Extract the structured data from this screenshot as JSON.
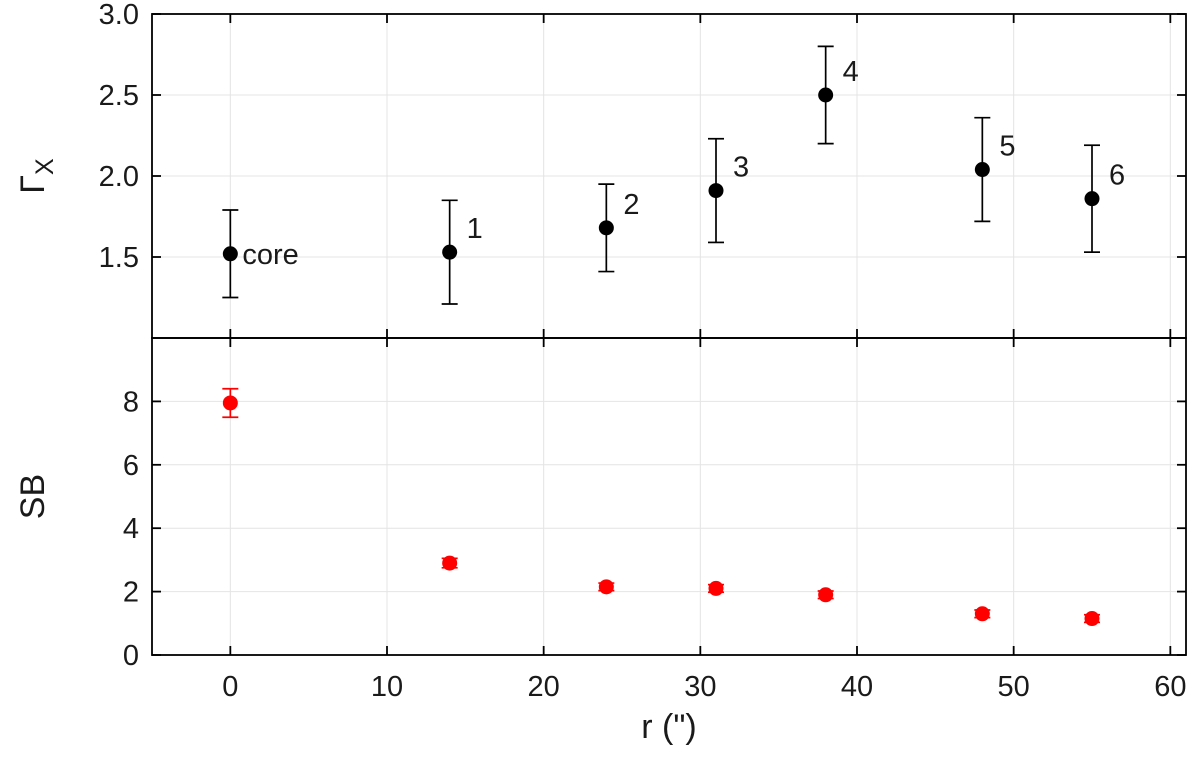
{
  "figure": {
    "background": "#ffffff",
    "axis_color": "#000000",
    "grid_color": "#e4e4e4",
    "text_color": "#1a1a1a",
    "xlabel": "r (\")",
    "xlim": [
      -5,
      61
    ],
    "xticks": [
      0,
      10,
      20,
      30,
      40,
      50,
      60
    ],
    "xtick_labels": [
      "0",
      "10",
      "20",
      "30",
      "40",
      "50",
      "60"
    ]
  },
  "chart_data": [
    {
      "type": "scatter",
      "panel": "top",
      "ylabel": "Γ",
      "ylabel_subscript": "X",
      "color": "#000000",
      "ylim": [
        1.0,
        3.0
      ],
      "yticks": [
        1.5,
        2.0,
        2.5,
        3.0
      ],
      "ytick_labels": [
        "1.5",
        "2.0",
        "2.5",
        "3.0"
      ],
      "x": [
        0,
        14,
        24,
        31,
        38,
        48,
        55
      ],
      "y": [
        1.52,
        1.53,
        1.68,
        1.91,
        2.5,
        2.04,
        1.86
      ],
      "yerr": [
        0.27,
        0.32,
        0.27,
        0.32,
        0.3,
        0.32,
        0.33
      ],
      "point_labels": [
        "core",
        "1",
        "2",
        "3",
        "4",
        "5",
        "6"
      ],
      "grid": true,
      "legend": "none"
    },
    {
      "type": "scatter",
      "panel": "bottom",
      "ylabel": "SB",
      "ylabel_subscript": "",
      "color": "#ff0000",
      "ylim": [
        0,
        10
      ],
      "yticks": [
        0,
        2,
        4,
        6,
        8
      ],
      "ytick_labels": [
        "0",
        "2",
        "4",
        "6",
        "8"
      ],
      "x": [
        0,
        14,
        24,
        31,
        38,
        48,
        55
      ],
      "y": [
        7.95,
        2.9,
        2.15,
        2.1,
        1.9,
        1.3,
        1.15
      ],
      "yerr": [
        0.45,
        0.15,
        0.12,
        0.12,
        0.12,
        0.12,
        0.12
      ],
      "point_labels": [
        "",
        "",
        "",
        "",
        "",
        "",
        ""
      ],
      "grid": true,
      "legend": "none"
    }
  ]
}
